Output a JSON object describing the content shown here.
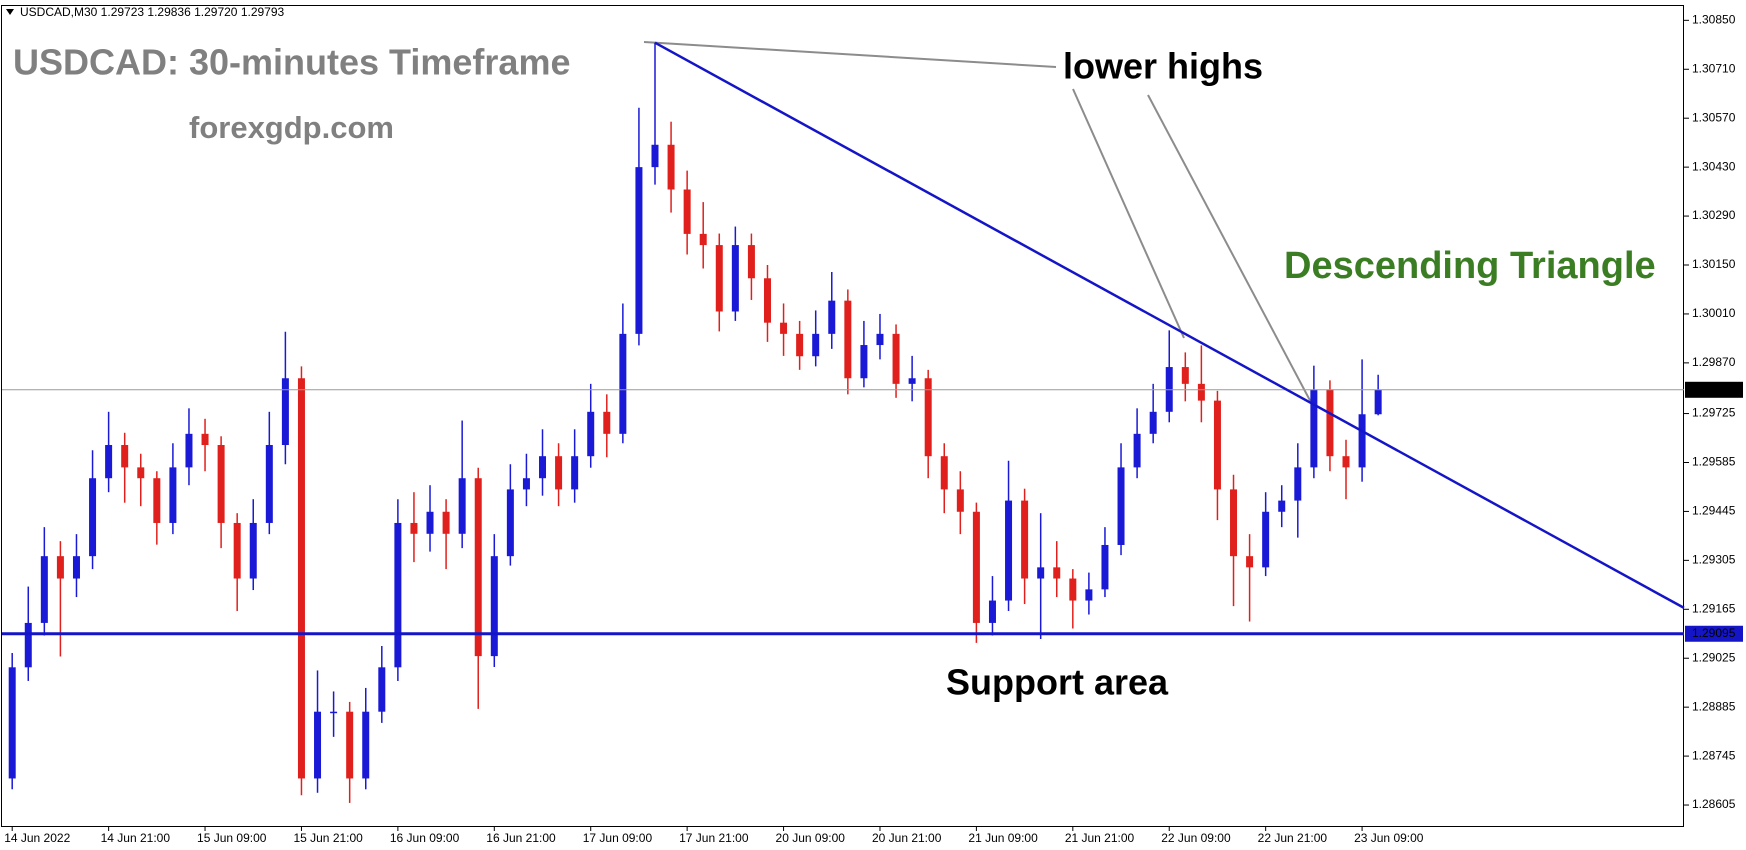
{
  "chart_data": {
    "type": "candlestick",
    "header": "USDCAD,M30  1.29723 1.29836 1.29720 1.29793",
    "title": "USDCAD: 30-minutes Timeframe",
    "subtitle": "forexgdp.com",
    "annotations": {
      "lower_highs": "lower highs",
      "pattern": "Descending Triangle",
      "support": "Support area"
    },
    "categories": [
      "14 Jun 2022",
      null,
      null,
      null,
      null,
      null,
      "14 Jun 21:00",
      null,
      null,
      null,
      null,
      null,
      "15 Jun 09:00",
      null,
      null,
      null,
      null,
      null,
      "15 Jun 21:00",
      null,
      null,
      null,
      null,
      null,
      "16 Jun 09:00",
      null,
      null,
      null,
      null,
      null,
      "16 Jun 21:00",
      null,
      null,
      null,
      null,
      null,
      "17 Jun 09:00",
      null,
      null,
      null,
      null,
      null,
      "17 Jun 21:00",
      null,
      null,
      null,
      null,
      null,
      "20 Jun 09:00",
      null,
      null,
      null,
      null,
      null,
      "20 Jun 21:00",
      null,
      null,
      null,
      null,
      null,
      "21 Jun 09:00",
      null,
      null,
      null,
      null,
      null,
      "21 Jun 21:00",
      null,
      null,
      null,
      null,
      null,
      "22 Jun 09:00",
      null,
      null,
      null,
      null,
      null,
      "22 Jun 21:00",
      null,
      null,
      null,
      null,
      null,
      "23 Jun 09:00",
      null
    ],
    "open": [
      1.28681,
      1.28999,
      1.29126,
      1.29317,
      1.29253,
      1.29317,
      1.2954,
      1.29635,
      1.29571,
      1.2954,
      1.29412,
      1.29571,
      1.29667,
      1.29635,
      1.29412,
      1.29253,
      1.29412,
      1.29635,
      1.29826,
      1.28681,
      1.28872,
      1.28872,
      1.28681,
      1.28872,
      1.28999,
      1.29412,
      1.29381,
      1.29444,
      1.29381,
      1.2954,
      1.29031,
      1.29317,
      1.29508,
      1.2954,
      1.29603,
      1.29508,
      1.29603,
      1.2973,
      1.29667,
      1.29953,
      1.3043,
      1.30494,
      1.30366,
      1.30239,
      1.30207,
      1.30017,
      1.30207,
      1.30112,
      1.29985,
      1.29953,
      1.29889,
      1.29953,
      1.30048,
      1.29826,
      1.29921,
      1.29953,
      1.2981,
      1.29826,
      1.29603,
      1.29508,
      1.29444,
      1.29126,
      1.2919,
      1.29476,
      1.29253,
      1.29285,
      1.29253,
      1.2919,
      1.29222,
      1.29349,
      1.29571,
      1.29667,
      1.2973,
      1.29858,
      1.2981,
      1.29762,
      1.29508,
      1.29317,
      1.29285,
      1.29444,
      1.29476,
      1.29571,
      1.29794,
      1.29603,
      1.29571,
      1.29723
    ],
    "high": [
      1.2904,
      1.2923,
      1.294,
      1.2936,
      1.2938,
      1.2962,
      1.2973,
      1.2967,
      1.2961,
      1.2956,
      1.2964,
      1.2974,
      1.2971,
      1.2966,
      1.2944,
      1.2948,
      1.2973,
      1.29959,
      1.2986,
      1.2899,
      1.2893,
      1.289,
      1.2894,
      1.2906,
      1.2948,
      1.295,
      1.2952,
      1.2948,
      1.29705,
      1.2957,
      1.2938,
      1.2958,
      1.2961,
      1.2968,
      1.2964,
      1.2968,
      1.2981,
      1.2978,
      1.3004,
      1.306,
      1.30786,
      1.3056,
      1.3042,
      1.3033,
      1.3024,
      1.3026,
      1.3024,
      1.3015,
      1.3004,
      1.2999,
      1.3002,
      1.3013,
      1.3008,
      1.2999,
      1.3001,
      1.2998,
      1.2989,
      1.2985,
      1.2964,
      1.2956,
      1.2947,
      1.2926,
      1.2959,
      1.2951,
      1.2944,
      1.2936,
      1.2928,
      1.2927,
      1.294,
      1.2964,
      1.2974,
      1.2981,
      1.29963,
      1.299,
      1.2992,
      1.2979,
      1.2955,
      1.2938,
      1.295,
      1.2952,
      1.2964,
      1.29862,
      1.2982,
      1.2965,
      1.2988,
      1.29836
    ],
    "low": [
      1.2865,
      1.2896,
      1.2909,
      1.2903,
      1.292,
      1.2928,
      1.295,
      1.2947,
      1.2946,
      1.2935,
      1.2938,
      1.2952,
      1.2956,
      1.2934,
      1.2916,
      1.2922,
      1.2938,
      1.2958,
      1.28633,
      1.2864,
      1.288,
      1.28611,
      1.2865,
      1.2884,
      1.2896,
      1.293,
      1.2933,
      1.2928,
      1.2934,
      1.2888,
      1.29,
      1.2929,
      1.2946,
      1.2949,
      1.2946,
      1.2947,
      1.2957,
      1.296,
      1.2964,
      1.2992,
      1.3038,
      1.303,
      1.3018,
      1.3014,
      1.2996,
      1.2999,
      1.3005,
      1.2993,
      1.2989,
      1.2985,
      1.2986,
      1.2991,
      1.2978,
      1.298,
      1.2988,
      1.2977,
      1.2976,
      1.2954,
      1.2944,
      1.2938,
      1.29069,
      1.2909,
      1.2916,
      1.2918,
      1.2908,
      1.292,
      1.2911,
      1.2915,
      1.292,
      1.2932,
      1.2954,
      1.2964,
      1.297,
      1.2976,
      1.297,
      1.2942,
      1.29174,
      1.2913,
      1.2926,
      1.294,
      1.2937,
      1.2954,
      1.2956,
      1.2948,
      1.2953,
      1.2972
    ],
    "close": [
      1.28999,
      1.29126,
      1.29317,
      1.29253,
      1.29317,
      1.2954,
      1.29635,
      1.29571,
      1.2954,
      1.29412,
      1.29571,
      1.29667,
      1.29635,
      1.29412,
      1.29253,
      1.29412,
      1.29635,
      1.29826,
      1.28681,
      1.28872,
      1.28872,
      1.28681,
      1.28872,
      1.28999,
      1.29412,
      1.29381,
      1.29444,
      1.29381,
      1.2954,
      1.29031,
      1.29317,
      1.29508,
      1.2954,
      1.29603,
      1.29508,
      1.29603,
      1.2973,
      1.29667,
      1.29953,
      1.3043,
      1.30494,
      1.30366,
      1.30239,
      1.30207,
      1.30017,
      1.30207,
      1.30112,
      1.29985,
      1.29953,
      1.29889,
      1.29953,
      1.30048,
      1.29826,
      1.29921,
      1.29953,
      1.2981,
      1.29826,
      1.29603,
      1.29508,
      1.29444,
      1.29126,
      1.2919,
      1.29476,
      1.29253,
      1.29285,
      1.29253,
      1.2919,
      1.29222,
      1.29349,
      1.29571,
      1.29667,
      1.2973,
      1.29858,
      1.2981,
      1.29762,
      1.29508,
      1.29317,
      1.29285,
      1.29444,
      1.29476,
      1.29571,
      1.29794,
      1.29603,
      1.29571,
      1.29723,
      1.29793
    ],
    "up_color": "#1a1ad6",
    "down_color": "#e0201c",
    "ylim": [
      1.28545,
      1.30891
    ],
    "yticks": [
      {
        "value": 1.3085,
        "label": "1.30850"
      },
      {
        "value": 1.3071,
        "label": "1.30710"
      },
      {
        "value": 1.3057,
        "label": "1.30570"
      },
      {
        "value": 1.3043,
        "label": "1.30430"
      },
      {
        "value": 1.3029,
        "label": "1.30290"
      },
      {
        "value": 1.3015,
        "label": "1.30150"
      },
      {
        "value": 1.3001,
        "label": "1.30010"
      },
      {
        "value": 1.2987,
        "label": "1.29870"
      },
      1.29725,
      1.29585,
      1.29445,
      1.29305,
      1.29165,
      1.29025,
      1.28885,
      1.28745,
      1.28605
    ],
    "current_price": 1.29793,
    "support_level": 1.29095,
    "support_color": "#1515c8",
    "trendline": {
      "start_price": 1.30786,
      "end_price": 1.29169,
      "color": "#1515c8"
    }
  }
}
